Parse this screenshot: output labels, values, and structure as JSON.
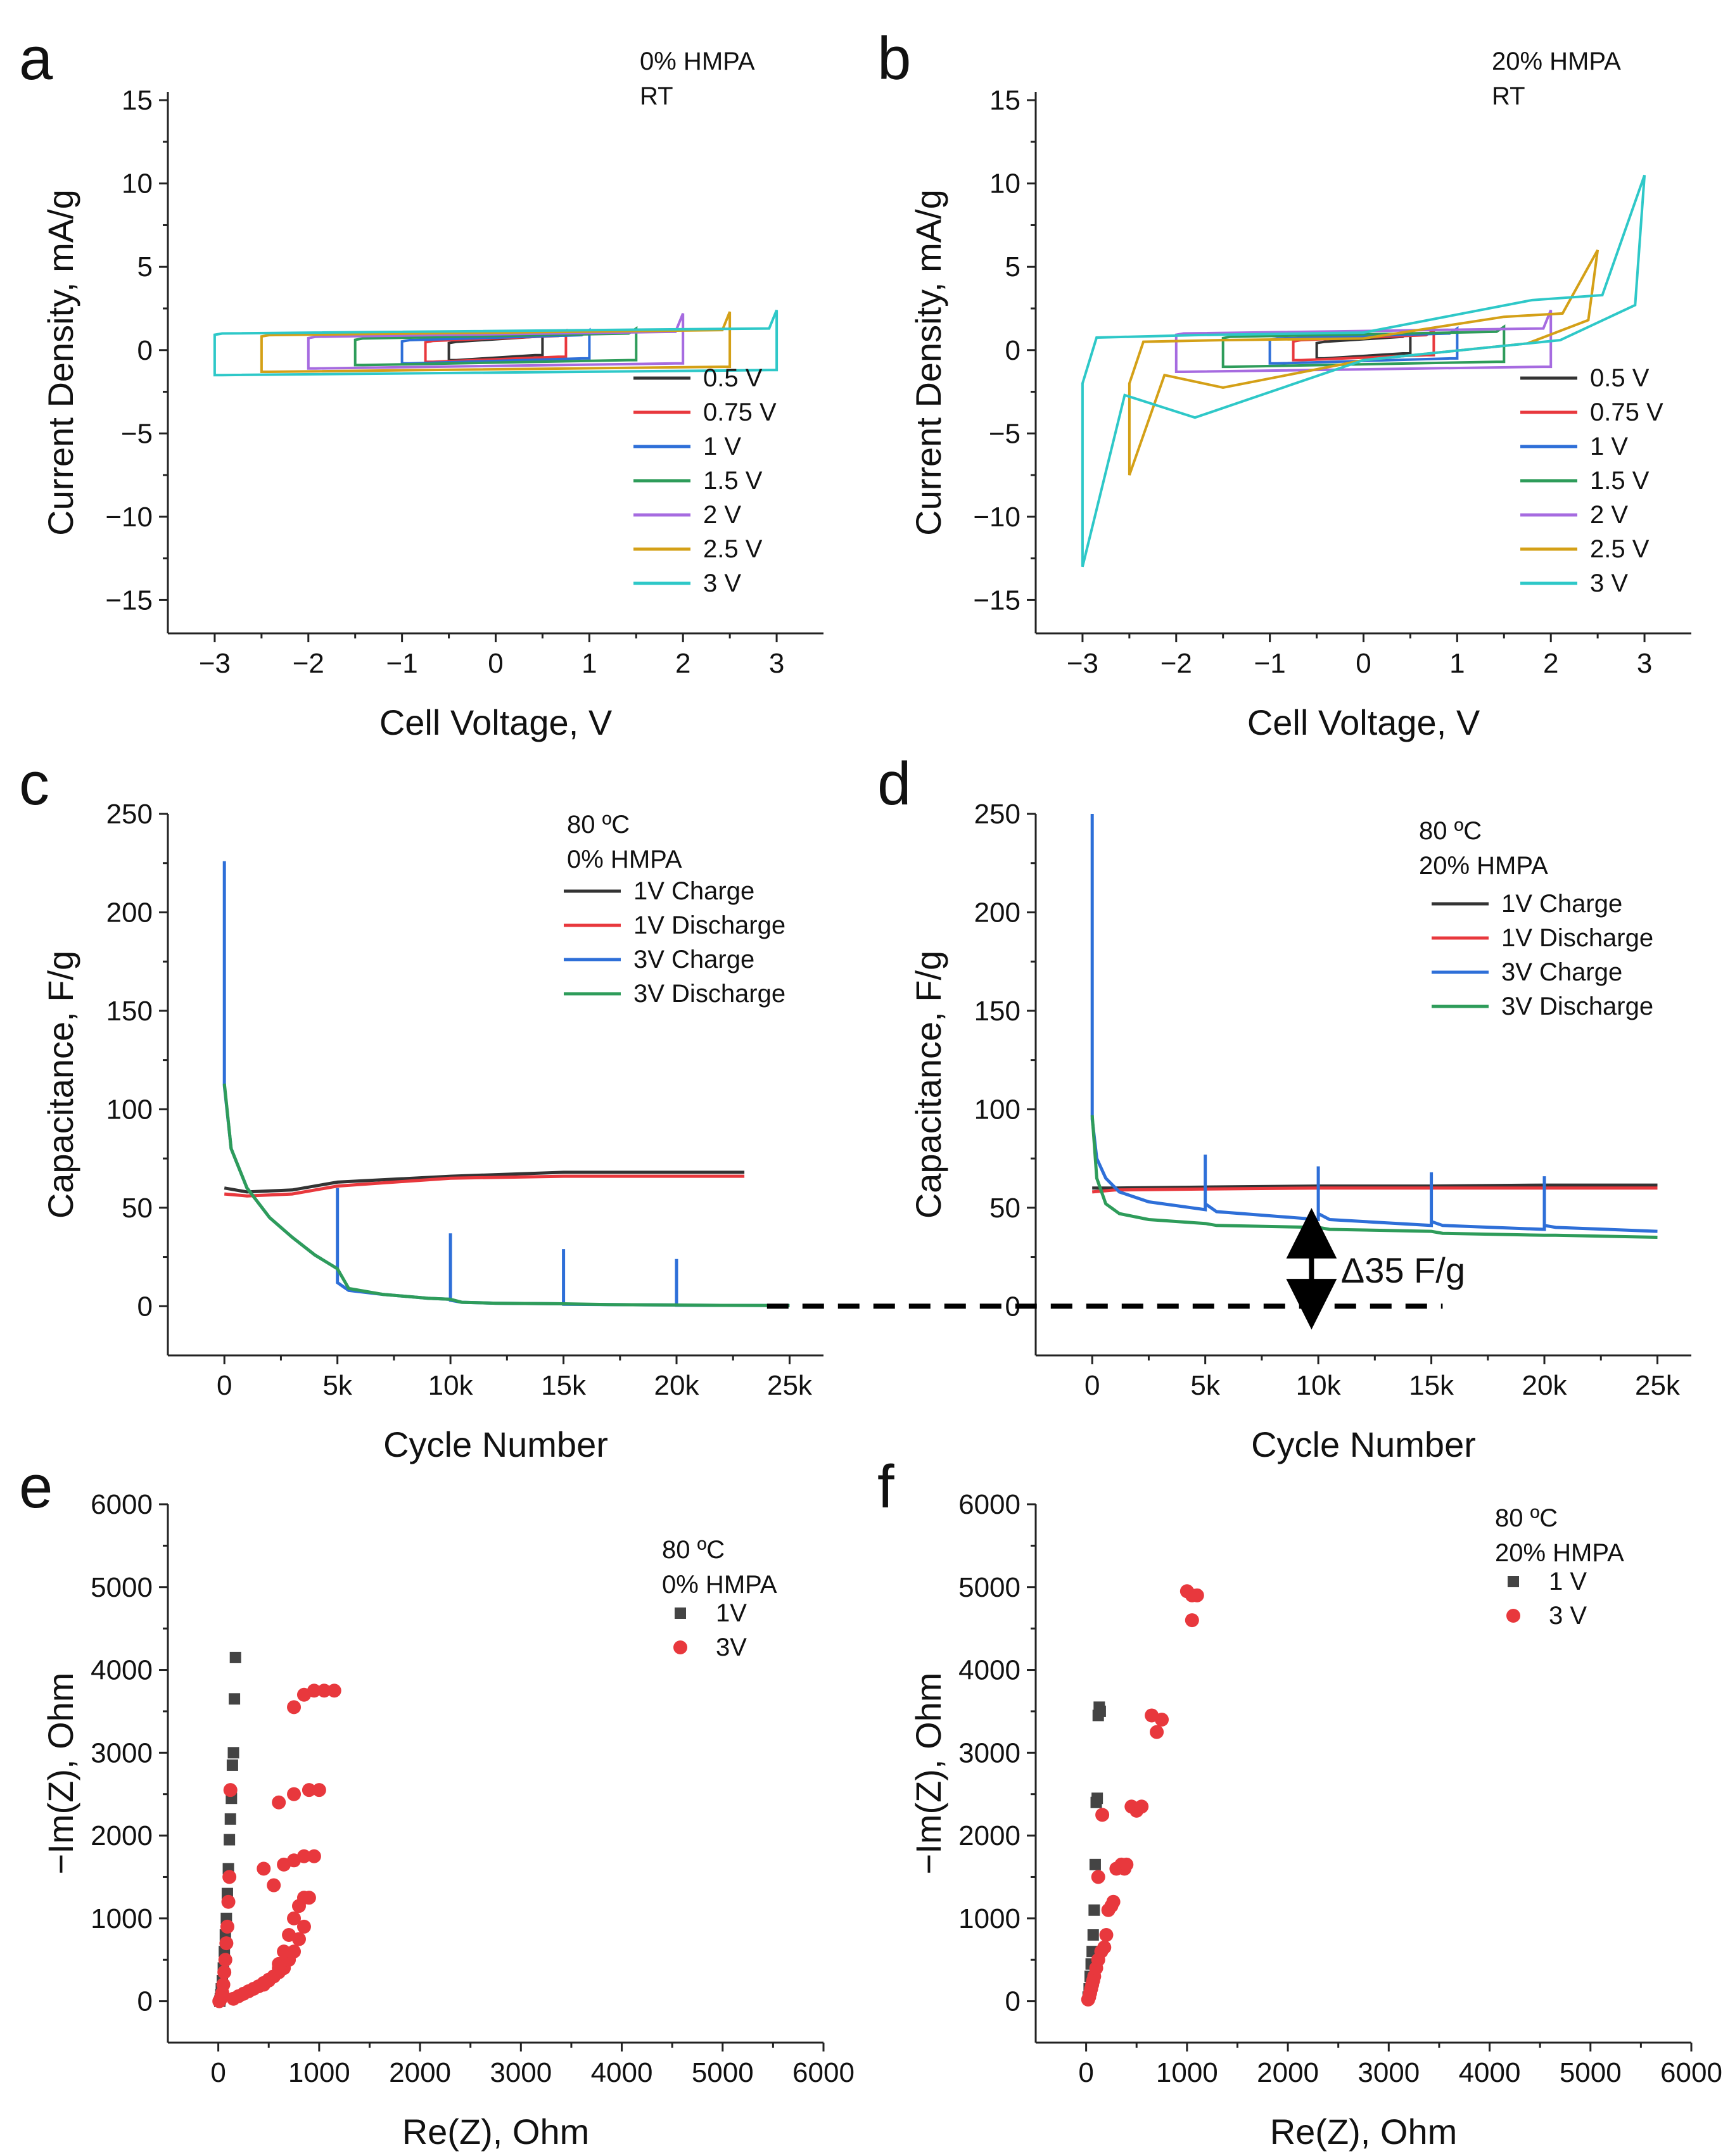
{
  "panels": [
    {
      "letter": "a",
      "chart_data": {
        "type": "line",
        "title": "",
        "annotations": [
          "0% HMPA",
          "RT"
        ],
        "xlabel": "Cell Voltage, V",
        "ylabel": "Current Density, mA/g",
        "xlim": [
          -3.5,
          3.5
        ],
        "ylim": [
          -17,
          15.5
        ],
        "xticks": [
          -3,
          -2,
          -1,
          0,
          1,
          2,
          3
        ],
        "xtick_labels": [
          "−3",
          "−2",
          "−1",
          "0",
          "1",
          "2",
          "3"
        ],
        "yticks": [
          -15,
          -10,
          -5,
          0,
          5,
          10,
          15
        ],
        "ytick_labels": [
          "−15",
          "−10",
          "−5",
          "0",
          "5",
          "10",
          "15"
        ],
        "legend_position": "right",
        "series": [
          {
            "name": "0.5 V",
            "color": "#333333",
            "vmax": 0.5,
            "top": 0.5,
            "bottom": -0.6
          },
          {
            "name": "0.75 V",
            "color": "#e8383d",
            "vmax": 0.75,
            "top": 0.55,
            "bottom": -0.7
          },
          {
            "name": "1 V",
            "color": "#2e6fd8",
            "vmax": 1,
            "top": 0.6,
            "bottom": -0.8
          },
          {
            "name": "1.5 V",
            "color": "#2e9c5a",
            "vmax": 1.5,
            "top": 0.7,
            "bottom": -0.9
          },
          {
            "name": "2 V",
            "color": "#a66be0",
            "vmax": 2,
            "top": 0.8,
            "bottom": -1.1
          },
          {
            "name": "2.5 V",
            "color": "#d4a017",
            "vmax": 2.5,
            "top": 0.9,
            "bottom": -1.3
          },
          {
            "name": "3 V",
            "color": "#2ec8c8",
            "vmax": 3,
            "top": 1.0,
            "bottom": -1.5
          }
        ]
      }
    },
    {
      "letter": "b",
      "chart_data": {
        "type": "line",
        "title": "",
        "annotations": [
          "20% HMPA",
          "RT"
        ],
        "xlabel": "Cell Voltage, V",
        "ylabel": "Current Density, mA/g",
        "xlim": [
          -3.5,
          3.5
        ],
        "ylim": [
          -17,
          15.5
        ],
        "xticks": [
          -3,
          -2,
          -1,
          0,
          1,
          2,
          3
        ],
        "xtick_labels": [
          "−3",
          "−2",
          "−1",
          "0",
          "1",
          "2",
          "3"
        ],
        "yticks": [
          -15,
          -10,
          -5,
          0,
          5,
          10,
          15
        ],
        "ytick_labels": [
          "−15",
          "−10",
          "−5",
          "0",
          "5",
          "10",
          "15"
        ],
        "legend_position": "right",
        "series": [
          {
            "name": "0.5 V",
            "color": "#333333",
            "vmax": 0.5,
            "top": 0.5,
            "bottom": -0.5
          },
          {
            "name": "0.75 V",
            "color": "#e8383d",
            "vmax": 0.75,
            "top": 0.6,
            "bottom": -0.6
          },
          {
            "name": "1 V",
            "color": "#2e6fd8",
            "vmax": 1,
            "top": 0.7,
            "bottom": -0.8
          },
          {
            "name": "1.5 V",
            "color": "#2e9c5a",
            "vmax": 1.5,
            "top": 0.8,
            "bottom": -1.0
          },
          {
            "name": "2 V",
            "color": "#a66be0",
            "vmax": 2,
            "top": 1.0,
            "bottom": -1.3
          },
          {
            "name": "2.5 V",
            "color": "#d4a017",
            "vmax": 2.5,
            "top": 2.0,
            "bottom": -2.5,
            "peak_pos": 6,
            "peak_neg": -7.5
          },
          {
            "name": "3 V",
            "color": "#2ec8c8",
            "vmax": 3,
            "top": 3.0,
            "bottom": -4.5,
            "peak_pos": 10.5,
            "peak_neg": -13
          }
        ]
      }
    },
    {
      "letter": "c",
      "chart_data": {
        "type": "line",
        "title": "",
        "annotations": [
          "80 ºC",
          "0% HMPA"
        ],
        "xlabel": "Cycle Number",
        "ylabel": "Capacitance, F/g",
        "xlim": [
          -2500,
          26500
        ],
        "ylim": [
          -25,
          250
        ],
        "xticks": [
          0,
          5000,
          10000,
          15000,
          20000,
          25000
        ],
        "xtick_labels": [
          "0",
          "5k",
          "10k",
          "15k",
          "20k",
          "25k"
        ],
        "yticks": [
          0,
          50,
          100,
          150,
          200,
          250
        ],
        "ytick_labels": [
          "0",
          "50",
          "100",
          "150",
          "200",
          "250"
        ],
        "legend_position": "top-right",
        "series": [
          {
            "name": "1V Charge",
            "color": "#333333",
            "x": [
              0,
              1000,
              3000,
              5000,
              10000,
              15000,
              20000,
              23000
            ],
            "y": [
              60,
              58,
              59,
              63,
              66,
              68,
              68,
              68
            ]
          },
          {
            "name": "1V Discharge",
            "color": "#e8383d",
            "x": [
              0,
              1000,
              3000,
              5000,
              10000,
              15000,
              20000,
              23000
            ],
            "y": [
              57,
              56,
              57,
              61,
              65,
              66,
              66,
              66
            ]
          },
          {
            "name": "3V Charge",
            "color": "#2e6fd8",
            "x": [
              0,
              0,
              300,
              1000,
              2000,
              3000,
              4000,
              5000,
              5000,
              5000,
              5500,
              7000,
              9000,
              10000,
              10000,
              10000,
              10500,
              12000,
              15000,
              15000,
              15000,
              17000,
              20000,
              20000,
              20000,
              22000,
              25000
            ],
            "y": [
              226,
              112,
              80,
              60,
              45,
              35,
              26,
              19,
              60,
              12,
              8,
              6,
              4,
              3.5,
              37,
              3,
              2,
              1.5,
              1.2,
              29,
              1,
              0.8,
              0.6,
              24,
              0.5,
              0.4,
              0.3
            ]
          },
          {
            "name": "3V Discharge",
            "color": "#2e9c5a",
            "x": [
              0,
              300,
              1000,
              2000,
              3000,
              4000,
              5000,
              5500,
              7000,
              9000,
              10000,
              10500,
              12000,
              15000,
              17000,
              20000,
              22000,
              25000
            ],
            "y": [
              113,
              80,
              60,
              45,
              35,
              26,
              19,
              9,
              6,
              4,
              3.5,
              2,
              1.5,
              1.2,
              0.8,
              0.6,
              0.4,
              0.3
            ]
          }
        ]
      }
    },
    {
      "letter": "d",
      "chart_data": {
        "type": "line",
        "title": "",
        "annotations": [
          "80 ºC",
          "20% HMPA",
          "Δ35 F/g"
        ],
        "xlabel": "Cycle Number",
        "ylabel": "Capacitance, F/g",
        "xlim": [
          -2500,
          26500
        ],
        "ylim": [
          -25,
          250
        ],
        "xticks": [
          0,
          5000,
          10000,
          15000,
          20000,
          25000
        ],
        "xtick_labels": [
          "0",
          "5k",
          "10k",
          "15k",
          "20k",
          "25k"
        ],
        "yticks": [
          0,
          50,
          100,
          150,
          200,
          250
        ],
        "ytick_labels": [
          "0",
          "50",
          "100",
          "150",
          "200",
          "250"
        ],
        "legend_position": "top-right",
        "series": [
          {
            "name": "1V Charge",
            "color": "#333333",
            "x": [
              0,
              1000,
              5000,
              10000,
              15000,
              20000,
              25000
            ],
            "y": [
              60,
              60,
              60.5,
              61,
              61,
              61.5,
              61.5
            ]
          },
          {
            "name": "1V Discharge",
            "color": "#e8383d",
            "x": [
              0,
              1000,
              5000,
              10000,
              15000,
              20000,
              25000
            ],
            "y": [
              58,
              59,
              59.5,
              60,
              60,
              60,
              60
            ]
          },
          {
            "name": "3V Charge",
            "color": "#2e6fd8",
            "x": [
              0,
              0,
              200,
              600,
              1200,
              2500,
              5000,
              5000,
              5000,
              5500,
              10000,
              10000,
              10000,
              10500,
              15000,
              15000,
              15000,
              15500,
              20000,
              20000,
              20000,
              20500,
              25000
            ],
            "y": [
              250,
              95,
              75,
              65,
              58,
              53,
              49,
              77,
              52,
              48,
              44,
              71,
              47,
              44,
              41,
              68,
              43,
              41,
              39,
              66,
              41,
              40,
              38
            ]
          },
          {
            "name": "3V Discharge",
            "color": "#2e9c5a",
            "x": [
              0,
              200,
              600,
              1200,
              2500,
              5000,
              5500,
              10000,
              10500,
              15000,
              15500,
              20000,
              20500,
              25000
            ],
            "y": [
              97,
              65,
              52,
              47,
              44,
              42,
              41,
              40,
              39,
              38,
              37,
              36,
              36,
              35
            ]
          }
        ]
      }
    },
    {
      "letter": "e",
      "chart_data": {
        "type": "scatter",
        "title": "",
        "annotations": [
          "80 ºC",
          "0% HMPA"
        ],
        "xlabel": "Re(Z), Ohm",
        "ylabel": "−Im(Z), Ohm",
        "xlim": [
          -500,
          6000
        ],
        "ylim": [
          -500,
          6000
        ],
        "xticks": [
          0,
          1000,
          2000,
          3000,
          4000,
          5000,
          6000
        ],
        "xtick_labels": [
          "0",
          "1000",
          "2000",
          "3000",
          "4000",
          "5000",
          "6000"
        ],
        "yticks": [
          0,
          1000,
          2000,
          3000,
          4000,
          5000,
          6000
        ],
        "ytick_labels": [
          "0",
          "1000",
          "2000",
          "3000",
          "4000",
          "5000",
          "6000"
        ],
        "legend_position": "top-right",
        "series": [
          {
            "name": "1V",
            "marker": "square",
            "color": "#444444",
            "x": [
              15,
              20,
              25,
              30,
              40,
              50,
              60,
              70,
              80,
              90,
              100,
              110,
              120,
              130,
              140,
              150,
              160,
              170
            ],
            "y": [
              0,
              30,
              80,
              150,
              250,
              400,
              600,
              800,
              1000,
              1300,
              1600,
              1950,
              2200,
              2450,
              2850,
              3000,
              3650,
              4150
            ]
          },
          {
            "name": "3V",
            "marker": "circle",
            "color": "#e8383d",
            "x": [
              10,
              20,
              30,
              40,
              50,
              60,
              70,
              80,
              90,
              100,
              110,
              120,
              150,
              200,
              250,
              300,
              350,
              400,
              450,
              500,
              550,
              600,
              650,
              700,
              750,
              800,
              850,
              600,
              650,
              700,
              750,
              800,
              850,
              900,
              550,
              650,
              750,
              850,
              950,
              450,
              600,
              750,
              900,
              1000,
              750,
              850,
              950,
              1050,
              1150,
              450,
              500,
              550,
              600
            ],
            "y": [
              0,
              20,
              50,
              100,
              200,
              350,
              500,
              700,
              900,
              1200,
              1500,
              2550,
              30,
              60,
              90,
              120,
              150,
              180,
              220,
              260,
              300,
              350,
              400,
              500,
              600,
              750,
              900,
              450,
              600,
              800,
              1000,
              1150,
              1250,
              1250,
              1400,
              1650,
              1700,
              1750,
              1750,
              1600,
              2400,
              2500,
              2550,
              2550,
              3550,
              3700,
              3750,
              3750,
              3750,
              200,
              250,
              300,
              400
            ]
          }
        ]
      }
    },
    {
      "letter": "f",
      "chart_data": {
        "type": "scatter",
        "title": "",
        "annotations": [
          "80 ºC",
          "20% HMPA"
        ],
        "xlabel": "Re(Z), Ohm",
        "ylabel": "−Im(Z), Ohm",
        "xlim": [
          -500,
          6000
        ],
        "ylim": [
          -500,
          6000
        ],
        "xticks": [
          0,
          1000,
          2000,
          3000,
          4000,
          5000,
          6000
        ],
        "xtick_labels": [
          "0",
          "1000",
          "2000",
          "3000",
          "4000",
          "5000",
          "6000"
        ],
        "yticks": [
          0,
          1000,
          2000,
          3000,
          4000,
          5000,
          6000
        ],
        "ytick_labels": [
          "0",
          "1000",
          "2000",
          "3000",
          "4000",
          "5000",
          "6000"
        ],
        "legend_position": "top-right",
        "series": [
          {
            "name": "1 V",
            "marker": "square",
            "color": "#444444",
            "x": [
              20,
              30,
              40,
              50,
              60,
              70,
              80,
              90,
              100,
              110,
              120,
              130,
              140
            ],
            "y": [
              50,
              150,
              300,
              450,
              600,
              800,
              1100,
              1650,
              2400,
              2450,
              3450,
              3550,
              3500
            ]
          },
          {
            "name": "3 V",
            "marker": "circle",
            "color": "#e8383d",
            "x": [
              20,
              30,
              40,
              50,
              60,
              70,
              80,
              100,
              120,
              150,
              180,
              200,
              220,
              250,
              270,
              300,
              350,
              380,
              400,
              450,
              500,
              550,
              650,
              700,
              750,
              1000,
              1050,
              1100,
              1050,
              160,
              120
            ],
            "y": [
              20,
              50,
              100,
              150,
              200,
              250,
              300,
              400,
              500,
              600,
              650,
              800,
              1100,
              1150,
              1200,
              1600,
              1650,
              1600,
              1650,
              2350,
              2300,
              2350,
              3450,
              3250,
              3400,
              4950,
              4900,
              4900,
              4600,
              2250,
              1500
            ]
          }
        ]
      }
    }
  ],
  "bridge": {
    "color": "#000000"
  }
}
